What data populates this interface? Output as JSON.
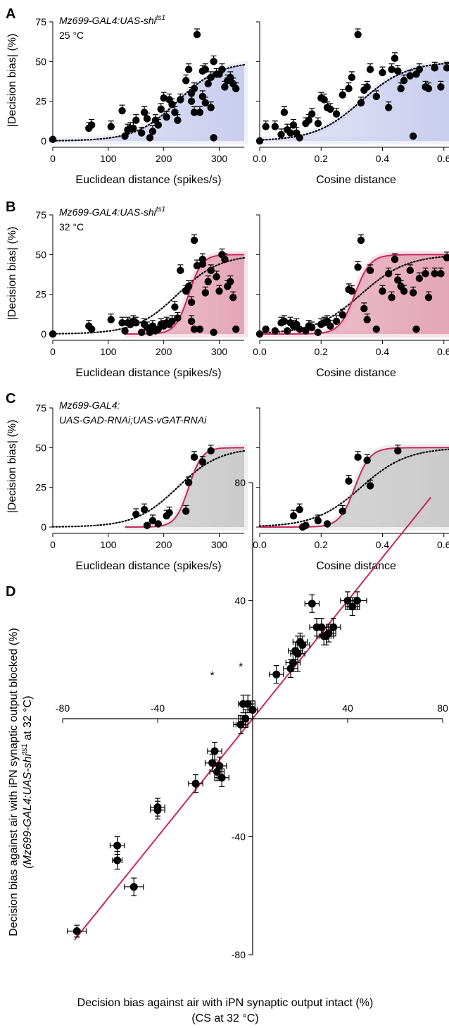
{
  "colors": {
    "blue_fill": "#c9cdee",
    "red_fill": "#e4a5b8",
    "gray_fill": "#cbcbcb",
    "red_line": "#c8285a",
    "dots": "#000000"
  },
  "labels": {
    "decision_bias": "|Decision bias| (%)",
    "euclid": "Euclidean distance (spikes/s)",
    "cosine": "Cosine distance",
    "asterisk": "*"
  },
  "panels": {
    "A": {
      "letter": "A",
      "genotype": "Mz699-GAL4:UAS-shi",
      "genotype_sup": "ts1",
      "temperature": "25 °C"
    },
    "B": {
      "letter": "B",
      "genotype": "Mz699-GAL4:UAS-shi",
      "genotype_sup": "ts1",
      "temperature": "32 °C"
    },
    "C": {
      "letter": "C",
      "genotype_line1": "Mz699-GAL4:",
      "genotype_line2": "UAS-GAD-RNAi;UAS-vGAT-RNAi"
    },
    "D": {
      "letter": "D",
      "ylabel_line1": "Decision bias against air with iPN synaptic output blocked (%)",
      "ylabel_line2_pre": "(Mz699-GAL4:UAS-shi",
      "ylabel_line2_sup": "ts1",
      "ylabel_line2_post": " at 32 °C)",
      "xlabel_line1": "Decision bias against air with iPN synaptic output intact (%)",
      "xlabel_line2": "(CS at 32 °C)"
    }
  },
  "chart_data": [
    {
      "id": "A-euclid",
      "type": "scatter",
      "xlabel": "Euclidean distance (spikes/s)",
      "ylabel": "|Decision bias| (%)",
      "xlim": [
        0,
        345
      ],
      "ylim": [
        0,
        75
      ],
      "xticks": [
        0,
        100,
        200,
        300
      ],
      "yticks": [
        0,
        25,
        50,
        75
      ],
      "fill": "blue",
      "curves": [
        "dotted"
      ],
      "x": [
        0,
        65,
        70,
        105,
        125,
        130,
        135,
        140,
        145,
        150,
        160,
        165,
        170,
        175,
        180,
        185,
        190,
        195,
        200,
        205,
        210,
        215,
        220,
        225,
        230,
        240,
        245,
        250,
        250,
        255,
        255,
        260,
        265,
        270,
        270,
        275,
        275,
        280,
        285,
        285,
        290,
        290,
        295,
        300,
        305,
        310,
        315,
        320,
        325,
        330
      ],
      "y": [
        1,
        8,
        10,
        9,
        19,
        3,
        7,
        8,
        8,
        13,
        5,
        18,
        14,
        2,
        6,
        13,
        10,
        20,
        27,
        15,
        26,
        23,
        18,
        13,
        26,
        38,
        45,
        30,
        25,
        18,
        33,
        67,
        18,
        44,
        28,
        45,
        24,
        36,
        40,
        21,
        2,
        50,
        42,
        42,
        45,
        34,
        38,
        40,
        36,
        33
      ]
    },
    {
      "id": "A-cosine",
      "type": "scatter",
      "xlabel": "Cosine distance",
      "ylabel": "|Decision bias| (%)",
      "xlim": [
        0,
        0.69
      ],
      "ylim": [
        0,
        75
      ],
      "xticks": [
        0.0,
        0.2,
        0.4,
        0.6
      ],
      "yticks": [
        0,
        25,
        50,
        75
      ],
      "fill": "blue",
      "curves": [
        "dotted"
      ],
      "x": [
        0.0,
        0.02,
        0.05,
        0.07,
        0.08,
        0.09,
        0.1,
        0.11,
        0.12,
        0.13,
        0.15,
        0.16,
        0.17,
        0.19,
        0.2,
        0.21,
        0.22,
        0.23,
        0.25,
        0.27,
        0.29,
        0.3,
        0.32,
        0.33,
        0.34,
        0.35,
        0.36,
        0.38,
        0.4,
        0.42,
        0.43,
        0.44,
        0.45,
        0.46,
        0.47,
        0.49,
        0.5,
        0.51,
        0.52,
        0.54,
        0.55,
        0.57,
        0.59,
        0.61,
        0.62,
        0.64,
        0.65,
        0.67
      ],
      "y": [
        0,
        9,
        9,
        4,
        18,
        7,
        5,
        10,
        5,
        2,
        11,
        13,
        17,
        11,
        27,
        26,
        21,
        20,
        17,
        29,
        33,
        40,
        67,
        24,
        32,
        34,
        45,
        28,
        43,
        21,
        45,
        52,
        44,
        33,
        38,
        41,
        3,
        42,
        45,
        34,
        33,
        46,
        34,
        46,
        32,
        33,
        43,
        36
      ]
    },
    {
      "id": "B-euclid",
      "type": "scatter",
      "xlabel": "Euclidean distance (spikes/s)",
      "ylabel": "|Decision bias| (%)",
      "xlim": [
        0,
        345
      ],
      "ylim": [
        0,
        75
      ],
      "xticks": [
        0,
        100,
        200,
        300
      ],
      "yticks": [
        0,
        25,
        50,
        75
      ],
      "fill": "red",
      "curves": [
        "dotted",
        "solid"
      ],
      "x": [
        0,
        65,
        70,
        105,
        125,
        130,
        135,
        140,
        145,
        150,
        160,
        165,
        170,
        175,
        180,
        185,
        190,
        195,
        200,
        205,
        210,
        215,
        220,
        225,
        230,
        240,
        245,
        250,
        250,
        255,
        255,
        260,
        265,
        270,
        270,
        275,
        280,
        285,
        290,
        295,
        300,
        305,
        310,
        315,
        320,
        325,
        330
      ],
      "y": [
        0,
        5,
        3,
        9,
        7,
        2,
        7,
        6,
        8,
        7,
        1,
        6,
        4,
        1,
        5,
        2,
        3,
        6,
        5,
        7,
        6,
        8,
        17,
        10,
        40,
        27,
        30,
        8,
        20,
        3,
        59,
        43,
        3,
        47,
        44,
        26,
        33,
        40,
        1,
        36,
        27,
        50,
        47,
        30,
        33,
        23,
        3
      ],
      "xerr": [
        0,
        0,
        0,
        0,
        0,
        0,
        0,
        0,
        0,
        0,
        0,
        0,
        0,
        0,
        0,
        0,
        0,
        0,
        0,
        0,
        0,
        0,
        0,
        0,
        0,
        0,
        0,
        0,
        0,
        0,
        0,
        0,
        0,
        0,
        0,
        0,
        0,
        0,
        0,
        0,
        0,
        0,
        0,
        0,
        0,
        0,
        0
      ]
    },
    {
      "id": "B-cosine",
      "type": "scatter",
      "xlabel": "Cosine distance",
      "ylabel": "|Decision bias| (%)",
      "xlim": [
        0,
        0.69
      ],
      "ylim": [
        0,
        75
      ],
      "xticks": [
        0.0,
        0.2,
        0.4,
        0.6
      ],
      "yticks": [
        0,
        25,
        50,
        75
      ],
      "fill": "red",
      "curves": [
        "dotted",
        "solid"
      ],
      "x": [
        0.0,
        0.02,
        0.05,
        0.07,
        0.08,
        0.09,
        0.1,
        0.11,
        0.12,
        0.13,
        0.15,
        0.16,
        0.17,
        0.19,
        0.2,
        0.21,
        0.22,
        0.23,
        0.25,
        0.27,
        0.29,
        0.3,
        0.32,
        0.33,
        0.34,
        0.35,
        0.36,
        0.38,
        0.4,
        0.42,
        0.43,
        0.44,
        0.45,
        0.46,
        0.47,
        0.49,
        0.5,
        0.51,
        0.52,
        0.54,
        0.55,
        0.57,
        0.59,
        0.61,
        0.62,
        0.64,
        0.65,
        0.67
      ],
      "y": [
        0,
        3,
        2,
        7,
        8,
        2,
        7,
        5,
        6,
        3,
        2,
        5,
        4,
        1,
        6,
        7,
        8,
        5,
        8,
        12,
        28,
        27,
        42,
        59,
        16,
        9,
        40,
        3,
        27,
        38,
        23,
        47,
        34,
        30,
        27,
        40,
        26,
        3,
        35,
        38,
        23,
        38,
        38,
        48,
        3,
        47,
        38,
        31
      ]
    },
    {
      "id": "C-euclid",
      "type": "scatter",
      "xlabel": "Euclidean distance (spikes/s)",
      "ylabel": "|Decision bias| (%)",
      "xlim": [
        0,
        345
      ],
      "ylim": [
        0,
        75
      ],
      "xticks": [
        0,
        100,
        200,
        300
      ],
      "yticks": [
        0,
        25,
        50,
        75
      ],
      "fill": "gray",
      "curves": [
        "dotted",
        "solid"
      ],
      "x": [
        150,
        165,
        170,
        180,
        190,
        205,
        210,
        240,
        245,
        255,
        270,
        285
      ],
      "y": [
        8,
        11,
        1,
        4,
        2,
        7,
        9,
        10,
        28,
        44,
        41,
        48
      ]
    },
    {
      "id": "C-cosine",
      "type": "scatter",
      "xlabel": "Cosine distance",
      "ylabel": "|Decision bias| (%)",
      "xlim": [
        0,
        0.69
      ],
      "ylim": [
        0,
        75
      ],
      "xticks": [
        0.0,
        0.2,
        0.4,
        0.6
      ],
      "yticks": [
        0,
        25,
        50,
        75
      ],
      "fill": "gray",
      "curves": [
        "dotted",
        "solid"
      ],
      "x": [
        0.11,
        0.13,
        0.14,
        0.15,
        0.19,
        0.22,
        0.27,
        0.29,
        0.32,
        0.35,
        0.36,
        0.45
      ],
      "y": [
        7,
        11,
        0,
        1,
        4,
        2,
        10,
        29,
        44,
        42,
        26,
        48
      ]
    },
    {
      "id": "D",
      "type": "scatter",
      "xlabel": "Decision bias against air with iPN synaptic output intact (%)",
      "ylabel": "Decision bias against air with iPN synaptic output blocked (%)",
      "xlim": [
        -80,
        80
      ],
      "ylim": [
        -80,
        80
      ],
      "xticks": [
        -80,
        -40,
        40,
        80
      ],
      "yticks": [
        -80,
        -40,
        40,
        80
      ],
      "x": [
        -74,
        -57,
        -57,
        -50,
        -40,
        -40,
        -24,
        -17,
        -16,
        -15,
        -14,
        -13,
        -5,
        -5,
        -4,
        -3,
        -2,
        0,
        10,
        16,
        17,
        18,
        19,
        20,
        21,
        25,
        27,
        29,
        30,
        31,
        32,
        34,
        40,
        42,
        44
      ],
      "y": [
        -72,
        -48,
        -43,
        -57,
        -30,
        -31,
        -22,
        -15,
        -11,
        -18,
        -16,
        -20,
        -2,
        -2,
        5,
        0,
        5,
        3,
        15,
        17,
        19,
        23,
        22,
        26,
        25,
        39,
        31,
        31,
        28,
        28,
        29,
        31,
        40,
        38,
        40
      ],
      "xerr": [
        4,
        2,
        3,
        4,
        3,
        3,
        3,
        3,
        3,
        3,
        3,
        3,
        3,
        2,
        2,
        3,
        3,
        2,
        3,
        3,
        3,
        3,
        3,
        3,
        3,
        3,
        3,
        3,
        3,
        3,
        3,
        3,
        3,
        3,
        4
      ],
      "yerr": [
        2,
        3,
        3,
        3,
        3,
        3,
        3,
        3,
        3,
        3,
        3,
        3,
        3,
        3,
        3,
        3,
        3,
        3,
        3,
        3,
        3,
        3,
        6,
        3,
        3,
        3,
        3,
        3,
        3,
        3,
        3,
        3,
        3,
        3,
        3
      ],
      "asterisk_points": [
        [
          -17,
          10
        ],
        [
          -5,
          13
        ]
      ],
      "fit_line": [
        [
          -75,
          -75
        ],
        [
          75,
          75
        ]
      ]
    }
  ]
}
